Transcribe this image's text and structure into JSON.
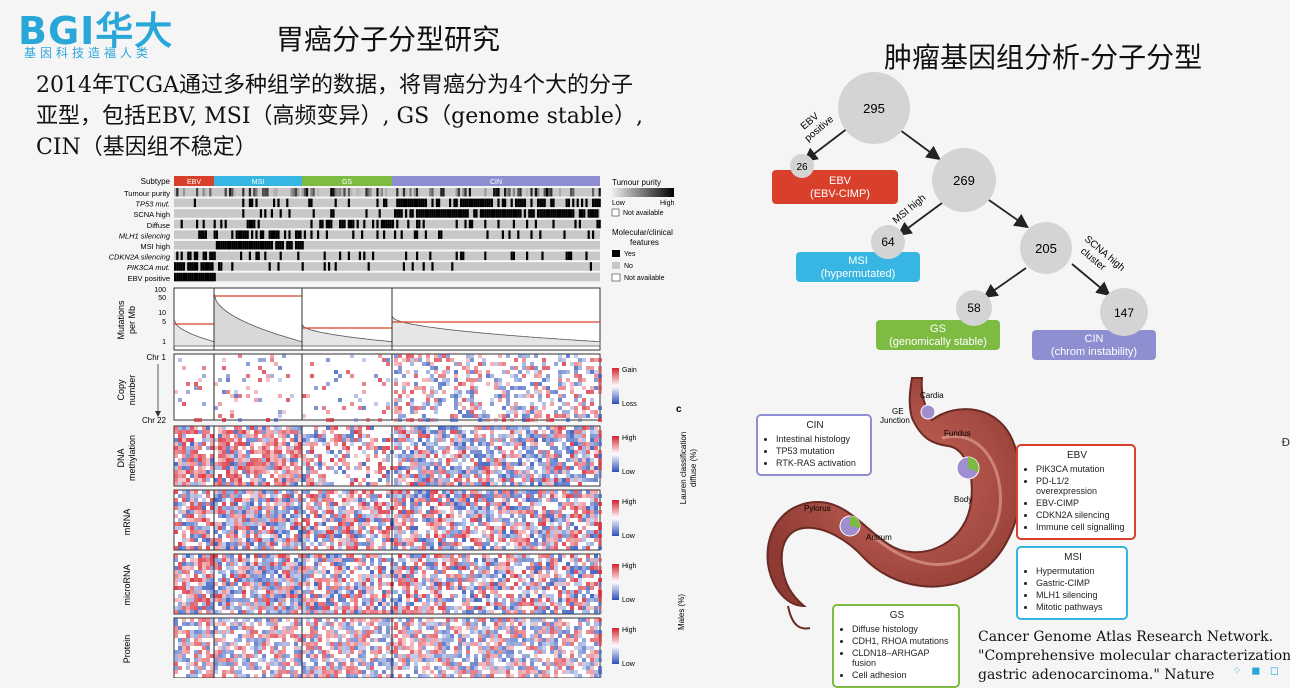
{
  "header": {
    "logo": "BGI华大",
    "logo_sub": "基因科技造福人类",
    "slide_title": "胃癌分子分型研究"
  },
  "right_title": "肿瘤基因组分析-分子分型",
  "intro": [
    "2014年TCGA通过多种组学的数据，将胃癌分为4个大的分子",
    "亚型，包括EBV, MSI（高频变异）, GS（genome stable）,",
    "CIN（基因组不稳定）"
  ],
  "heatmap": {
    "subtypes": [
      {
        "name": "EBV",
        "color": "#d9402b"
      },
      {
        "name": "MSI",
        "color": "#38b6e3"
      },
      {
        "name": "GS",
        "color": "#7dbb42"
      },
      {
        "name": "CIN",
        "color": "#8e8fd0"
      }
    ],
    "subtype_label": "Subtype",
    "track_labels": [
      "Tumour purity",
      "TP53 mut.",
      "SCNA high",
      "Diffuse",
      "MLH1 silencing",
      "MSI high",
      "CDKN2A silencing",
      "PIK3CA mut.",
      "EBV positive"
    ],
    "purity_legend": {
      "title": "Tumour purity",
      "low": "Low",
      "high": "High",
      "na": "Not available"
    },
    "molecular_legend": {
      "title1": "Molecular/clinical",
      "title2": "features",
      "yes": "Yes",
      "no": "No",
      "na": "Not available"
    },
    "mut_ylabel1": "Mutations",
    "mut_ylabel2": "per Mb",
    "mut_ticks": [
      "100",
      "50",
      "10",
      "5",
      "1"
    ],
    "copy_ylabel1": "Copy",
    "copy_ylabel2": "number",
    "copy_top": "Chr 1",
    "copy_bottom": "Chr 22",
    "gain": "Gain",
    "loss": "Loss",
    "high": "High",
    "low": "Low",
    "blocks": [
      "DNA methylation",
      "mRNA",
      "microRNA",
      "Protein"
    ],
    "meth1": "DNA",
    "meth2": "methylation",
    "panel_letter": "c",
    "lauren1": "Lauren classification",
    "lauren2": "diffuse (%)",
    "males": "Males (%)"
  },
  "tree": {
    "root": "295",
    "n26": "26",
    "n269": "269",
    "n64": "64",
    "n205": "205",
    "n58": "58",
    "n147": "147",
    "edge_ebv1": "EBV",
    "edge_ebv2": "positive",
    "edge_msi": "MSI high",
    "edge_scna1": "SCNA high",
    "edge_scna2": "cluster",
    "ebv1": "EBV",
    "ebv2": "(EBV-CIMP)",
    "msi1": "MSI",
    "msi2": "(hypermutated)",
    "gs1": "GS",
    "gs2": "(genomically stable)",
    "cin1": "CIN",
    "cin2": "(chrom instability)",
    "colors": {
      "ebv": "#d9402b",
      "msi": "#38b6e3",
      "gs": "#7dbb42",
      "cin": "#8e8fd0"
    }
  },
  "stomach": {
    "labels": {
      "cardia": "Cardia",
      "ge1": "GE",
      "ge2": "Junction",
      "fundus": "Fundus",
      "body": "Body",
      "pylorus": "Pylorus",
      "antrum": "Antrum"
    },
    "cin": {
      "title": "CIN",
      "items": [
        "Intestinal histology",
        "TP53 mutation",
        "RTK-RAS activation"
      ]
    },
    "ebv": {
      "title": "EBV",
      "items": [
        "PIK3CA mutation",
        "PD-L1/2 overexpression",
        "EBV-CIMP",
        "CDKN2A silencing",
        "Immune cell signalling"
      ]
    },
    "msi": {
      "title": "MSI",
      "items": [
        "Hypermutation",
        "Gastric-CIMP",
        "MLH1 silencing",
        "Mitotic pathways"
      ]
    },
    "gs": {
      "title": "GS",
      "items": [
        "Diffuse histology",
        "CDH1, RHOA mutations",
        "CLDN18–ARHGAP fusion",
        "Cell adhesion"
      ]
    }
  },
  "citation": [
    "Cancer Genome Atlas Research Network.",
    "\"Comprehensive molecular characterization of",
    "gastric adenocarcinoma.\" Nature"
  ],
  "edge_mark": "Ð"
}
